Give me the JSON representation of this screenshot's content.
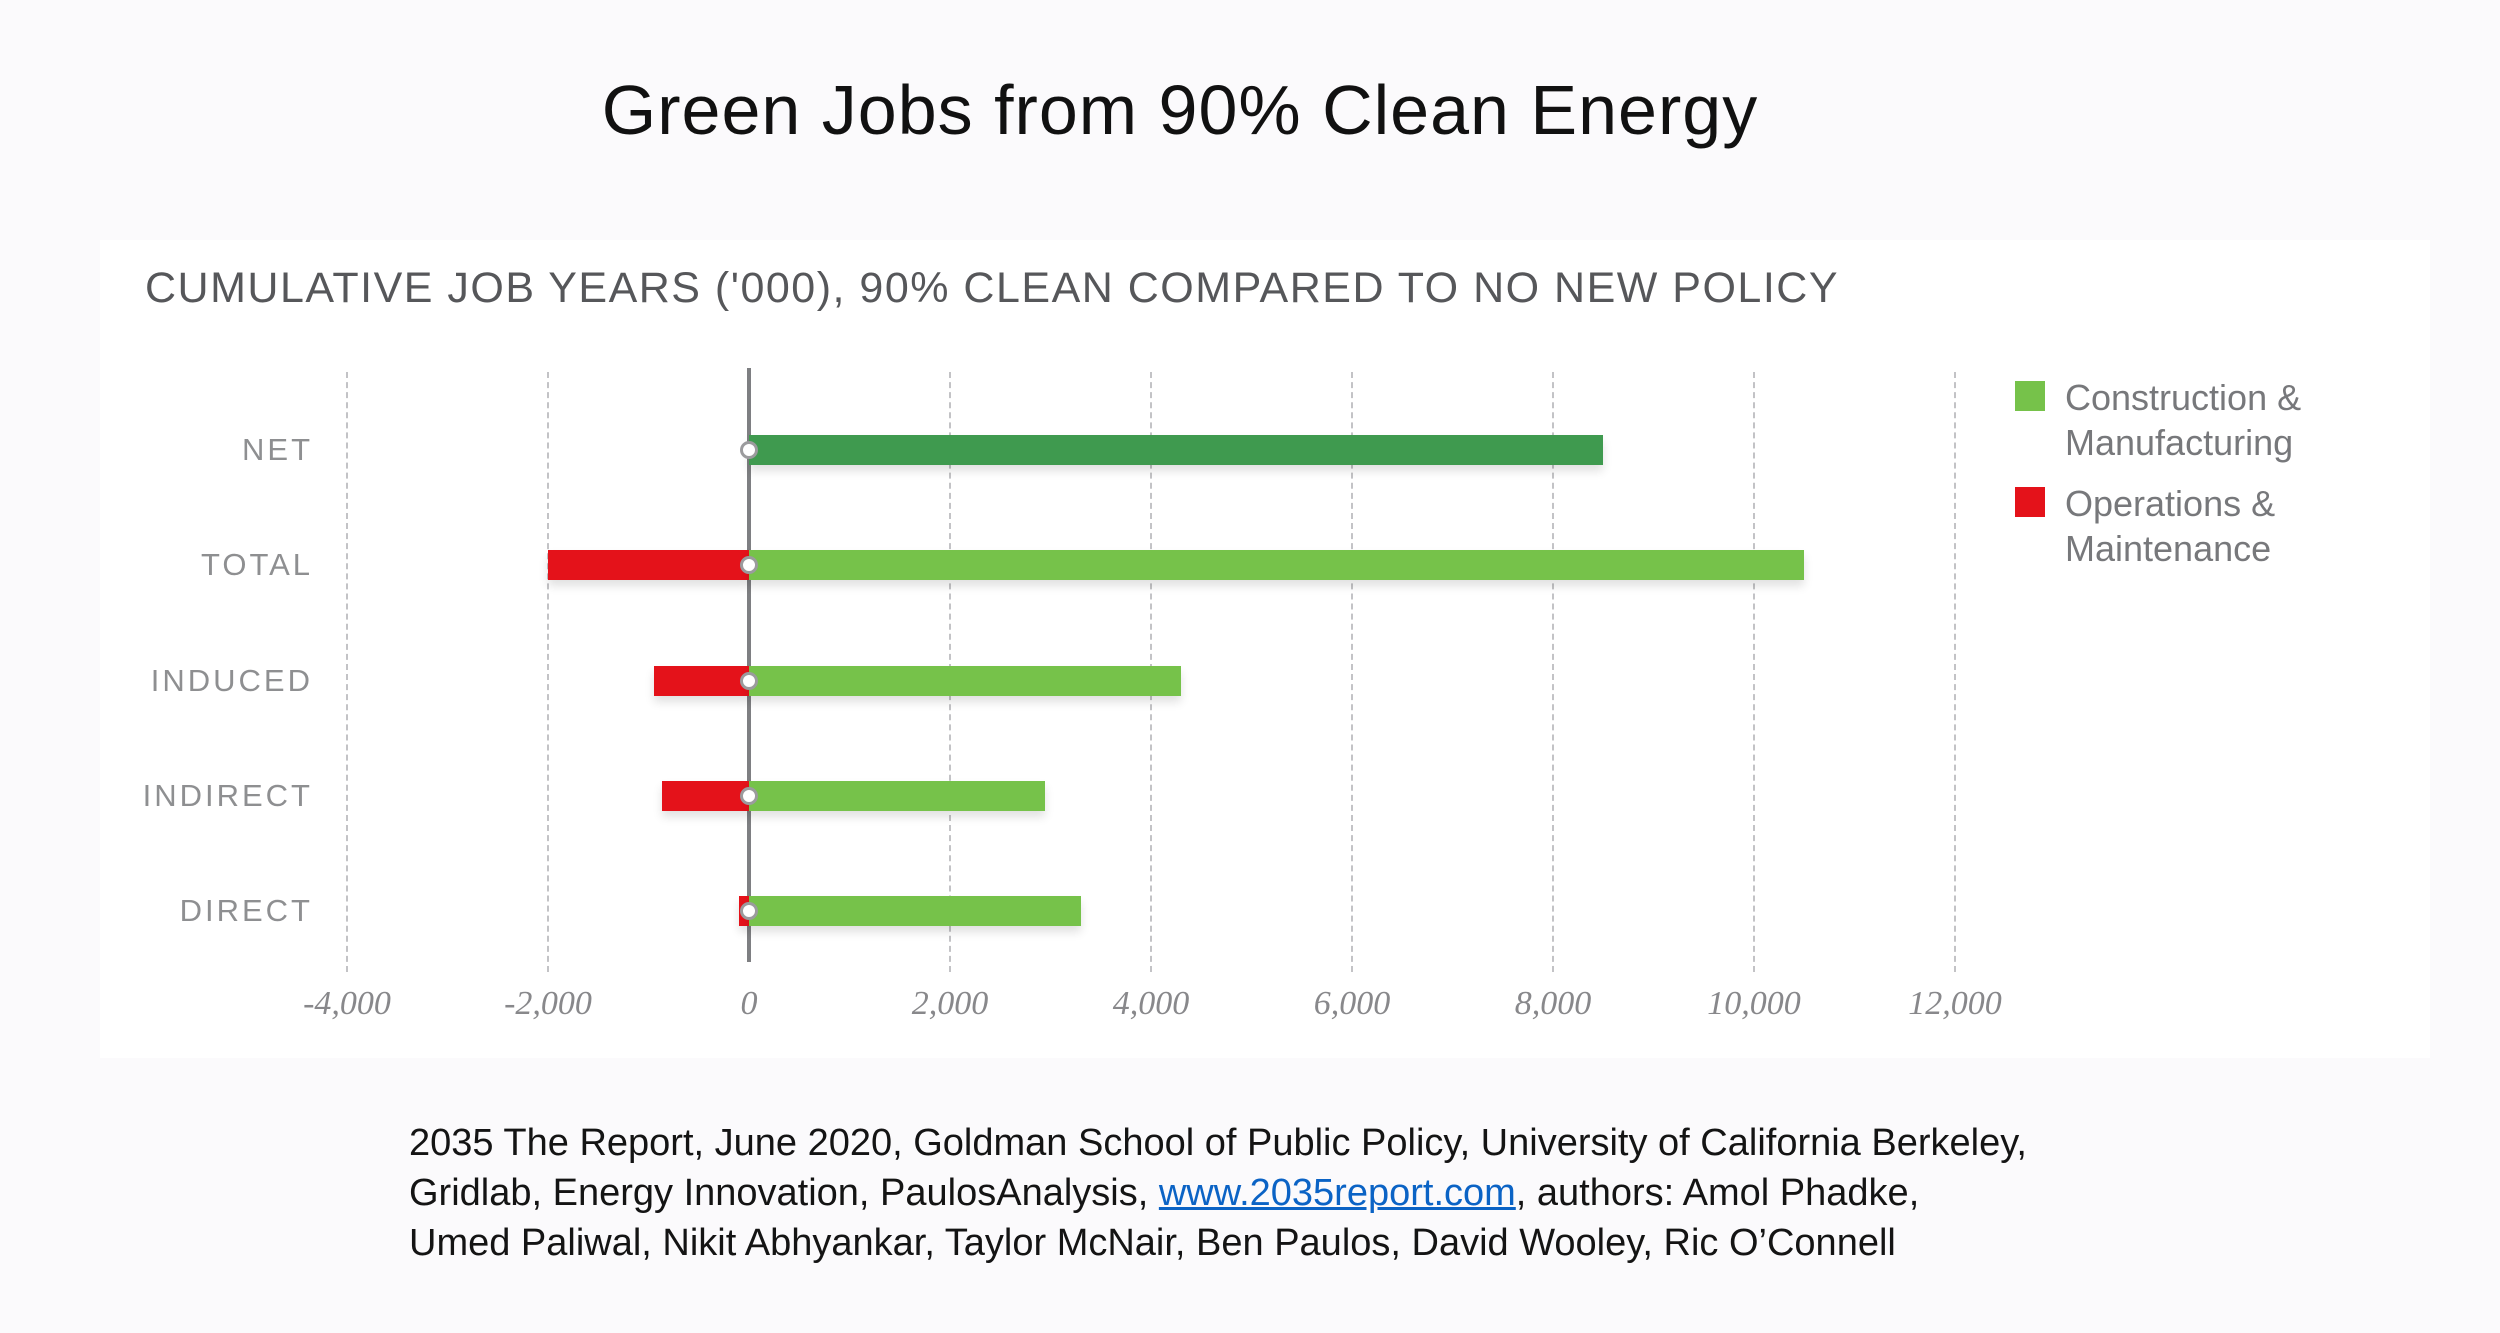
{
  "page": {
    "title": "Green Jobs from 90% Clean Energy",
    "background_color": "#fbfafc",
    "panel_color": "#ffffff"
  },
  "chart_data": {
    "type": "bar",
    "orientation": "horizontal",
    "title": "CUMULATIVE JOB YEARS ('000), 90% CLEAN COMPARED TO NO NEW POLICY",
    "categories": [
      "NET",
      "TOTAL",
      "INDUCED",
      "INDIRECT",
      "DIRECT"
    ],
    "series": [
      {
        "name": "Construction & Manufacturing",
        "color": "#76c24a",
        "bar_colors": [
          "#3f9a4f",
          "#76c24a",
          "#76c24a",
          "#76c24a",
          "#76c24a"
        ],
        "values": [
          8500,
          10500,
          4300,
          2950,
          3300
        ]
      },
      {
        "name": "Operations & Maintenance",
        "color": "#e4121a",
        "values": [
          0,
          -2000,
          -950,
          -870,
          -100
        ]
      }
    ],
    "xlim": [
      -4000,
      12000
    ],
    "xticks": [
      -4000,
      -2000,
      0,
      2000,
      4000,
      6000,
      8000,
      10000,
      12000
    ],
    "xtick_labels": [
      "-4,000",
      "-2,000",
      "0",
      "2,000",
      "4,000",
      "6,000",
      "8,000",
      "10,000",
      "12,000"
    ],
    "grid": "vertical-dashed",
    "zero_axis": true,
    "zero_marker": "white-circle",
    "legend_position": "right",
    "legend": [
      {
        "lines": [
          "Construction &",
          "Manufacturing"
        ],
        "color": "#76c24a"
      },
      {
        "lines": [
          "Operations &",
          "Maintenance"
        ],
        "color": "#e4121a"
      }
    ]
  },
  "citation": {
    "line1": "2035 The Report, June 2020, Goldman School of Public Policy, University of California Berkeley,",
    "line2_pre": "Gridlab, Energy Innovation, PaulosAnalysis, ",
    "link": "www.2035report.com",
    "line2_post": ", authors: Amol Phadke,",
    "line3": "Umed Paliwal, Nikit Abhyankar, Taylor McNair, Ben Paulos, David Wooley, Ric O’Connell",
    "link_color": "#0b63c5"
  }
}
